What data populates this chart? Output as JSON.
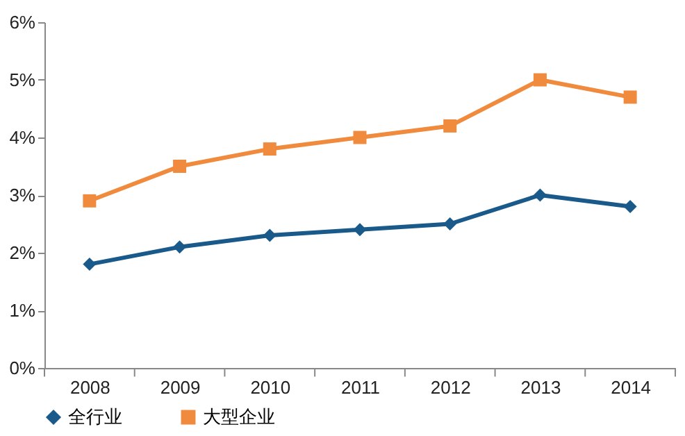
{
  "chart_data": {
    "type": "line",
    "categories": [
      "2008",
      "2009",
      "2010",
      "2011",
      "2012",
      "2013",
      "2014"
    ],
    "series": [
      {
        "name": "全行业",
        "color": "#1a5a8a",
        "marker": "diamond",
        "values": [
          1.8,
          2.1,
          2.3,
          2.4,
          2.5,
          3.0,
          2.8
        ]
      },
      {
        "name": "大型企业",
        "color": "#f08a3c",
        "marker": "square",
        "values": [
          2.9,
          3.5,
          3.8,
          4.0,
          4.2,
          5.0,
          4.7
        ]
      }
    ],
    "ylim": [
      0,
      6
    ],
    "yticks": [
      {
        "value": 0,
        "label": "0%"
      },
      {
        "value": 1,
        "label": "1%"
      },
      {
        "value": 2,
        "label": "2%"
      },
      {
        "value": 3,
        "label": "3%"
      },
      {
        "value": 4,
        "label": "4%"
      },
      {
        "value": 5,
        "label": "5%"
      },
      {
        "value": 6,
        "label": "6%"
      }
    ],
    "grid": false,
    "legend": "bottom",
    "line_style": "solid"
  }
}
